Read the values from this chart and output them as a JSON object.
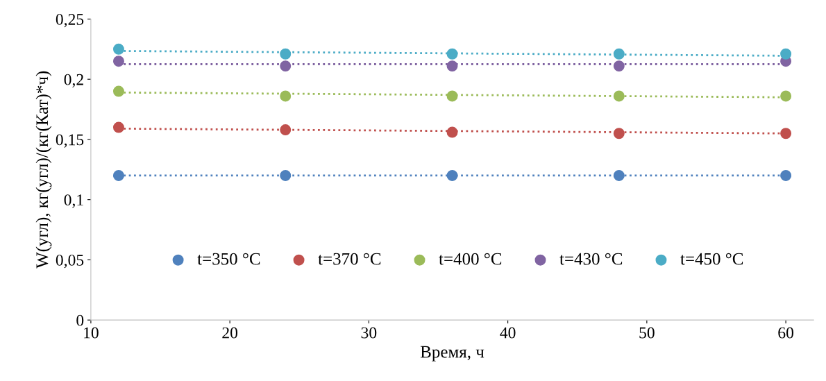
{
  "chart_data": {
    "type": "scatter",
    "xlabel": "Время, ч",
    "ylabel": "W(угл), кг(угл)/(кг(Кат)*ч)",
    "x": [
      12,
      24,
      36,
      48,
      60
    ],
    "xlim": [
      10,
      62
    ],
    "xticks": [
      10,
      20,
      30,
      40,
      50,
      60
    ],
    "ylim": [
      0,
      0.25
    ],
    "yticks": [
      {
        "value": 0,
        "label": "0"
      },
      {
        "value": 0.05,
        "label": "0,05"
      },
      {
        "value": 0.1,
        "label": "0,1"
      },
      {
        "value": 0.15,
        "label": "0,15"
      },
      {
        "value": 0.2,
        "label": "0,2"
      },
      {
        "value": 0.25,
        "label": "0,25"
      }
    ],
    "grid": false,
    "legend": "bottom",
    "marker": "circle",
    "series": [
      {
        "name": "t=350 °C",
        "color": "#4f81bd",
        "values": [
          0.12,
          0.12,
          0.12,
          0.12,
          0.12
        ]
      },
      {
        "name": "t=370 °C",
        "color": "#c0504d",
        "values": [
          0.16,
          0.158,
          0.156,
          0.155,
          0.155
        ]
      },
      {
        "name": "t=400 °C",
        "color": "#9bbb59",
        "values": [
          0.19,
          0.186,
          0.186,
          0.186,
          0.186
        ]
      },
      {
        "name": "t=430 °C",
        "color": "#8064a2",
        "values": [
          0.215,
          0.211,
          0.211,
          0.211,
          0.215
        ]
      },
      {
        "name": "t=450 °C",
        "color": "#4bacc6",
        "values": [
          0.225,
          0.221,
          0.221,
          0.221,
          0.221
        ]
      },
      {
        "type": "line",
        "line_style": "dotted",
        "marker": "none",
        "color": "#4f81bd",
        "values": [
          0.12,
          0.12,
          0.12,
          0.12,
          0.12
        ]
      },
      {
        "type": "line",
        "line_style": "dotted",
        "marker": "none",
        "color": "#c0504d",
        "values": [
          0.159,
          0.158,
          0.157,
          0.156,
          0.155
        ]
      },
      {
        "type": "line",
        "line_style": "dotted",
        "marker": "none",
        "color": "#9bbb59",
        "values": [
          0.189,
          0.188,
          0.187,
          0.186,
          0.185
        ]
      },
      {
        "type": "line",
        "line_style": "dotted",
        "marker": "none",
        "color": "#8064a2",
        "values": [
          0.2125,
          0.2125,
          0.2125,
          0.2125,
          0.2125
        ]
      },
      {
        "type": "line",
        "line_style": "dotted",
        "marker": "none",
        "color": "#4bacc6",
        "values": [
          0.2235,
          0.2225,
          0.2215,
          0.2205,
          0.2195
        ]
      }
    ]
  }
}
